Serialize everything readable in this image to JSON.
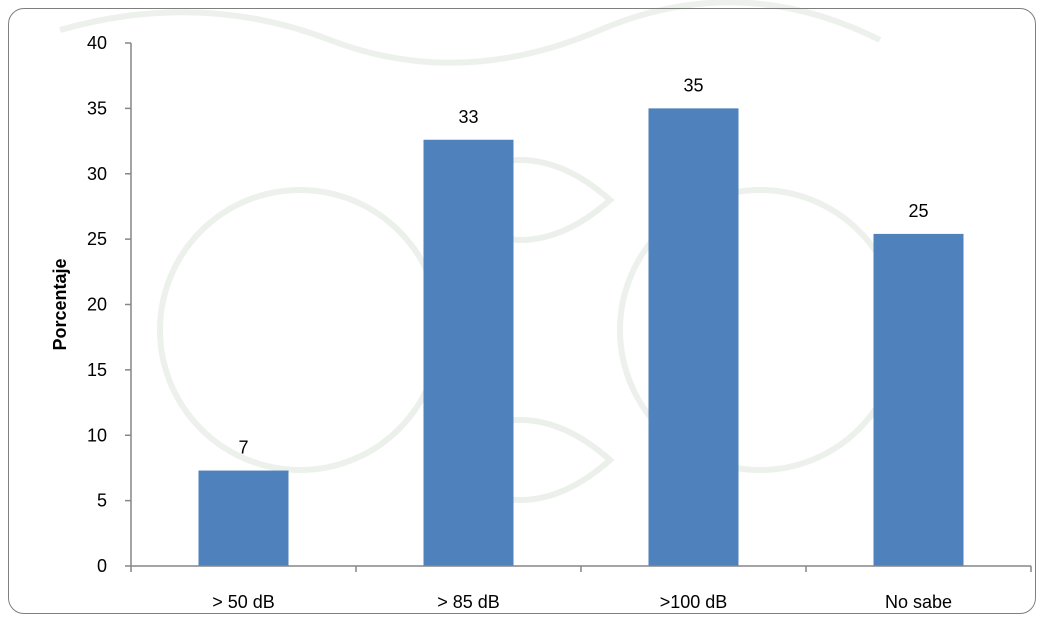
{
  "chart_data": {
    "type": "bar",
    "categories": [
      "> 50 dB",
      "> 85 dB",
      ">100 dB",
      "No sabe"
    ],
    "values": [
      7.3,
      32.6,
      35,
      25.4
    ],
    "data_labels": [
      "7",
      "33",
      "35",
      "25"
    ],
    "xlabel": "",
    "ylabel": "Porcentaje",
    "ylim": [
      0,
      40
    ],
    "yticks": [
      0,
      5,
      10,
      15,
      20,
      25,
      30,
      35,
      40
    ],
    "grid": false,
    "colors": {
      "bar": "#4f81bd",
      "axis": "#868686"
    }
  }
}
